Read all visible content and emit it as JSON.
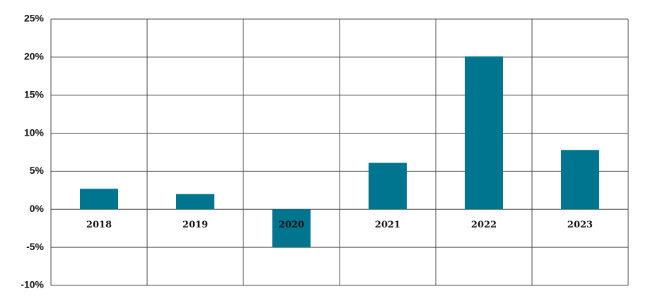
{
  "chart_data": {
    "type": "bar",
    "categories": [
      "2018",
      "2019",
      "2020",
      "2021",
      "2022",
      "2023"
    ],
    "values": [
      2.7,
      2.0,
      -5.0,
      6.1,
      20.1,
      7.8
    ],
    "color": "#00758f",
    "ylim": [
      -10,
      25
    ],
    "yticks": [
      {
        "value": -10,
        "label": "-10%"
      },
      {
        "value": -5,
        "label": "-5%"
      },
      {
        "value": 0,
        "label": "0%"
      },
      {
        "value": 5,
        "label": "5%"
      },
      {
        "value": 10,
        "label": "10%"
      },
      {
        "value": 15,
        "label": "15%"
      },
      {
        "value": 20,
        "label": "20%"
      },
      {
        "value": 25,
        "label": "25%"
      }
    ],
    "grid": true
  }
}
